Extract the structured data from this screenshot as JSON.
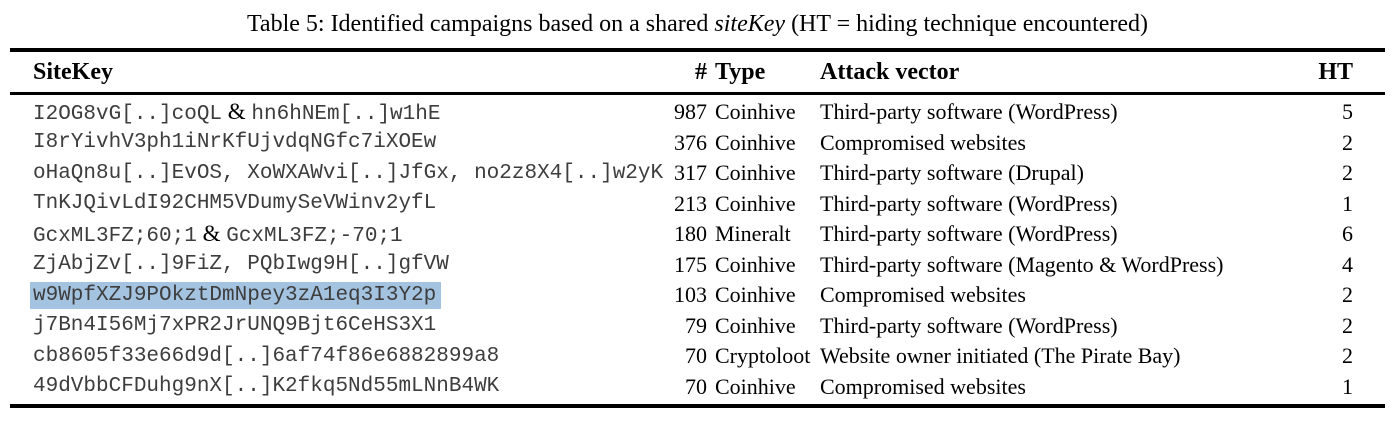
{
  "caption": {
    "prefix": "Table 5: Identified campaigns based on a shared ",
    "italic_term": "siteKey",
    "suffix": " (HT = hiding technique encountered)"
  },
  "table": {
    "columns": {
      "sitekey": "SiteKey",
      "count": "#",
      "type": "Type",
      "vector": "Attack vector",
      "ht": "HT"
    },
    "rows": [
      {
        "sitekey": "I2OG8vG[..]coQL & hn6hNEm[..]w1hE",
        "count": "987",
        "type": "Coinhive",
        "vector": "Third-party software (WordPress)",
        "ht": "5",
        "highlighted": false
      },
      {
        "sitekey": "I8rYivhV3ph1iNrKfUjvdqNGfc7iXOEw",
        "count": "376",
        "type": "Coinhive",
        "vector": "Compromised websites",
        "ht": "2",
        "highlighted": false
      },
      {
        "sitekey": "oHaQn8u[..]EvOS, XoWXAWvi[..]JfGx, no2z8X4[..]w2yK",
        "count": "317",
        "type": "Coinhive",
        "vector": "Third-party software (Drupal)",
        "ht": "2",
        "highlighted": false
      },
      {
        "sitekey": "TnKJQivLdI92CHM5VDumySeVWinv2yfL",
        "count": "213",
        "type": "Coinhive",
        "vector": "Third-party software (WordPress)",
        "ht": "1",
        "highlighted": false
      },
      {
        "sitekey": "GcxML3FZ;60;1 & GcxML3FZ;-70;1",
        "count": "180",
        "type": "Mineralt",
        "vector": "Third-party software (WordPress)",
        "ht": "6",
        "highlighted": false
      },
      {
        "sitekey": "ZjAbjZv[..]9FiZ, PQbIwg9H[..]gfVW",
        "count": "175",
        "type": "Coinhive",
        "vector": "Third-party software (Magento & WordPress)",
        "ht": "4",
        "highlighted": false
      },
      {
        "sitekey": "w9WpfXZJ9POkztDmNpey3zA1eq3I3Y2p",
        "count": "103",
        "type": "Coinhive",
        "vector": "Compromised websites",
        "ht": "2",
        "highlighted": true
      },
      {
        "sitekey": "j7Bn4I56Mj7xPR2JrUNQ9Bjt6CeHS3X1",
        "count": "79",
        "type": "Coinhive",
        "vector": "Third-party software (WordPress)",
        "ht": "2",
        "highlighted": false
      },
      {
        "sitekey": "cb8605f33e66d9d[..]6af74f86e6882899a8",
        "count": "70",
        "type": "Cryptoloot",
        "vector": "Website owner initiated (The Pirate Bay)",
        "ht": "2",
        "highlighted": false
      },
      {
        "sitekey": "49dVbbCFDuhg9nX[..]K2fkq5Nd55mLNnB4WK",
        "count": "70",
        "type": "Coinhive",
        "vector": "Compromised websites",
        "ht": "1",
        "highlighted": false
      }
    ]
  },
  "colors": {
    "highlight": "#a4c3e0",
    "text": "#000000",
    "sitekey_text": "#3d3d3d",
    "rule": "#000000"
  }
}
